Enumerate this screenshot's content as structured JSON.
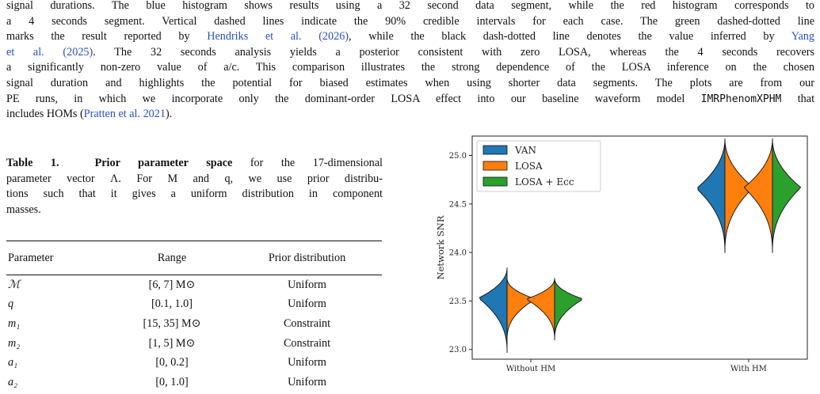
{
  "paragraph": {
    "line1": "signal durations. The blue histogram shows results using a 32 second data segment, while the red histogram corresponds to",
    "line2": "a 4 seconds segment. Vertical dashed lines indicate the 90% credible intervals for each case. The green dashed-dotted line",
    "line3_a": "marks the result reported by ",
    "line3_link": "Hendriks et al. (2026)",
    "line3_b": ", while the black dash-dotted line denotes the value inferred by ",
    "line3_link2": "Yang",
    "line4_link": "et al. (2025)",
    "line4_b": ". The 32 seconds analysis yields a posterior consistent with zero LOSA, whereas the 4 seconds recovers",
    "line5": "a significantly non-zero value of a/c. This comparison illustrates the strong dependence of the LOSA inference on the chosen",
    "line6": "signal duration and highlights the potential for biased estimates when using shorter data segments. The plots are from our",
    "line7_a": "PE runs, in which we incorporate only the dominant-order LOSA effect into our baseline waveform model ",
    "line7_code": "IMRPhenomXPHM",
    "line7_b": " that",
    "line8_a": "includes HOMs (",
    "line8_link": "Pratten et al. 2021",
    "line8_b": ")."
  },
  "caption": {
    "label": "Table 1.",
    "title": "Prior parameter space",
    "line1_rest": " for the 17-dimensional",
    "line2": "parameter vector Λ. For M and q, we use prior distribu-",
    "line3": "tions such that it gives a uniform distribution in component",
    "line4": "masses."
  },
  "table": {
    "headers": [
      "Parameter",
      "Range",
      "Prior distribution"
    ],
    "rows": [
      {
        "param": "ℳ",
        "range": "[6, 7] M⊙",
        "prior": "Uniform"
      },
      {
        "param": "q",
        "range": "[0.1, 1.0]",
        "prior": "Uniform"
      },
      {
        "param": "m₁",
        "range": "[15, 35] M⊙",
        "prior": "Constraint"
      },
      {
        "param": "m₂",
        "range": "[1, 5] M⊙",
        "prior": "Constraint"
      },
      {
        "param": "a₁",
        "range": "[0, 0.2]",
        "prior": "Uniform"
      },
      {
        "param": "a₂",
        "range": "[0, 1.0]",
        "prior": "Uniform"
      }
    ]
  },
  "chart_data": {
    "type": "violin",
    "ylabel": "Network SNR",
    "categories": [
      "Without HM",
      "With HM"
    ],
    "ylim": [
      22.9,
      25.2
    ],
    "yticks": [
      "23.0",
      "23.5",
      "24.0",
      "24.5",
      "25.0"
    ],
    "legend_position": "upper-left",
    "series": [
      {
        "name": "VAN",
        "color": "#1f77b4",
        "side": "left",
        "groups": [
          {
            "median": 23.53,
            "min": 22.97,
            "max": 23.84
          },
          {
            "median": 24.66,
            "min": 24.0,
            "max": 25.17
          }
        ]
      },
      {
        "name": "LOSA",
        "color": "#ff7f0e",
        "side": "both",
        "groups": [
          {
            "median": 23.52,
            "min": 23.1,
            "max": 23.73
          },
          {
            "median": 24.67,
            "min": 24.0,
            "max": 25.17
          }
        ]
      },
      {
        "name": "LOSA + Ecc",
        "color": "#2ca02c",
        "side": "right",
        "groups": [
          {
            "median": 23.52,
            "min": 23.1,
            "max": 23.73
          },
          {
            "median": 24.67,
            "min": 24.0,
            "max": 25.17
          }
        ]
      }
    ]
  }
}
